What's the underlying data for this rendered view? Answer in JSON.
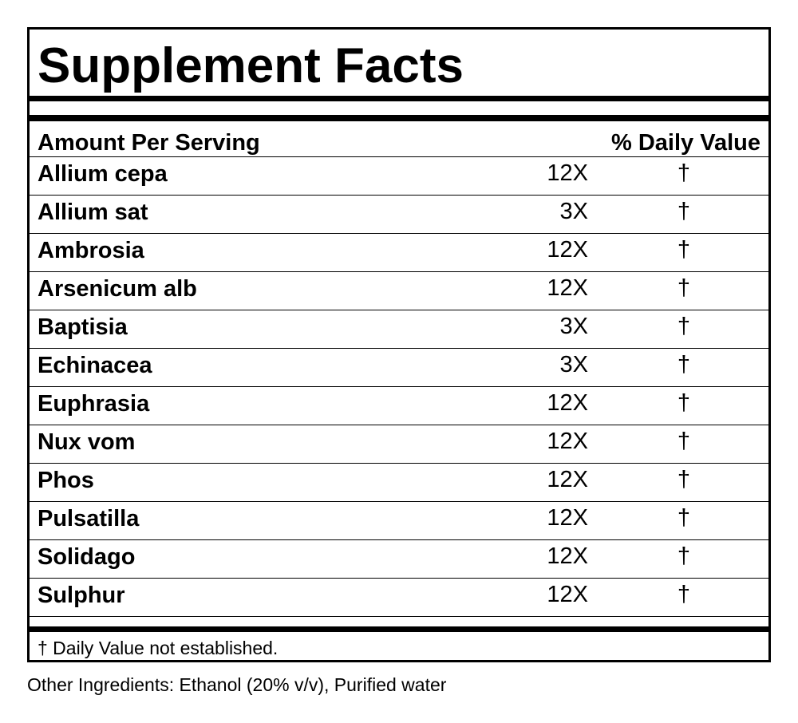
{
  "title": "Supplement Facts",
  "header": {
    "amount_label": "Amount Per Serving",
    "daily_value_label": "% Daily Value"
  },
  "rows": [
    {
      "name": "Allium cepa",
      "amount": "12X",
      "dv": "†"
    },
    {
      "name": "Allium sat",
      "amount": "3X",
      "dv": "†"
    },
    {
      "name": "Ambrosia",
      "amount": "12X",
      "dv": "†"
    },
    {
      "name": "Arsenicum alb",
      "amount": "12X",
      "dv": "†"
    },
    {
      "name": "Baptisia",
      "amount": "3X",
      "dv": "†"
    },
    {
      "name": "Echinacea",
      "amount": "3X",
      "dv": "†"
    },
    {
      "name": "Euphrasia",
      "amount": "12X",
      "dv": "†"
    },
    {
      "name": "Nux vom",
      "amount": "12X",
      "dv": "†"
    },
    {
      "name": "Phos",
      "amount": "12X",
      "dv": "†"
    },
    {
      "name": "Pulsatilla",
      "amount": "12X",
      "dv": "†"
    },
    {
      "name": "Solidago",
      "amount": "12X",
      "dv": "†"
    },
    {
      "name": "Sulphur",
      "amount": "12X",
      "dv": "†"
    }
  ],
  "footnote": "† Daily Value not established.",
  "other_ingredients": "Other Ingredients: Ethanol (20% v/v), Purified water"
}
